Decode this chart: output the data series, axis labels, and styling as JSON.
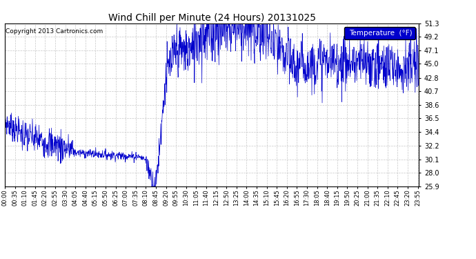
{
  "title": "Wind Chill per Minute (24 Hours) 20131025",
  "copyright": "Copyright 2013 Cartronics.com",
  "legend_label": "Temperature  (°F)",
  "line_color": "#0000cc",
  "background_color": "#ffffff",
  "grid_color": "#c0c0c0",
  "yticks": [
    25.9,
    28.0,
    30.1,
    32.2,
    34.4,
    36.5,
    38.6,
    40.7,
    42.8,
    45.0,
    47.1,
    49.2,
    51.3
  ],
  "ymin": 25.9,
  "ymax": 51.3,
  "xtick_labels": [
    "00:00",
    "00:35",
    "01:10",
    "01:45",
    "02:20",
    "02:55",
    "03:30",
    "04:05",
    "04:40",
    "05:15",
    "05:50",
    "06:25",
    "07:00",
    "07:35",
    "08:10",
    "08:45",
    "09:20",
    "09:55",
    "10:30",
    "11:05",
    "11:40",
    "12:15",
    "12:50",
    "13:25",
    "14:00",
    "14:35",
    "15:10",
    "15:45",
    "16:20",
    "16:55",
    "17:30",
    "18:05",
    "18:40",
    "19:15",
    "19:50",
    "20:25",
    "21:00",
    "21:35",
    "22:10",
    "22:45",
    "23:20",
    "23:55"
  ],
  "legend_box_color": "#0000cc",
  "legend_text_color": "#ffffff"
}
